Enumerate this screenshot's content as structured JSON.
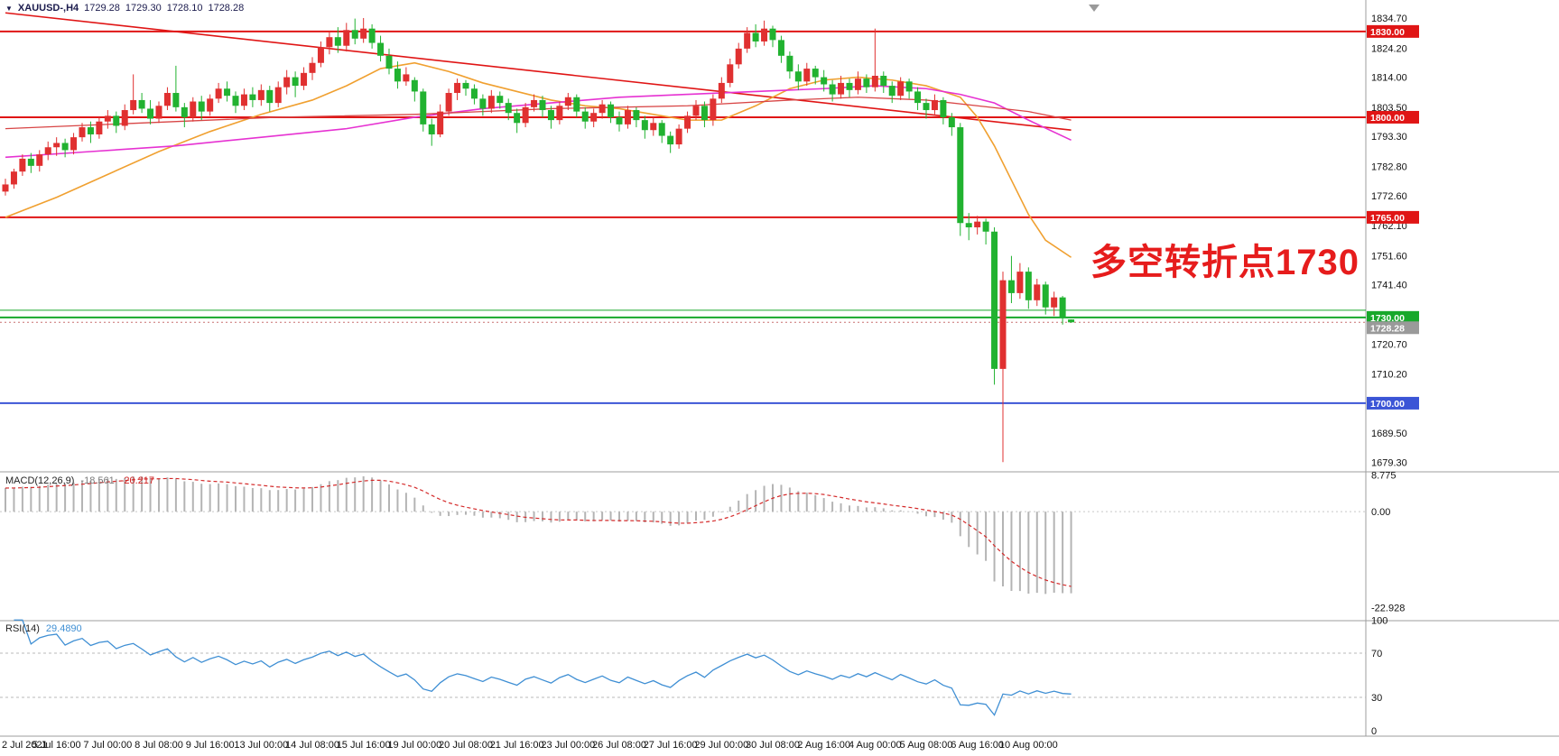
{
  "header": {
    "symbol": "XAUUSD-,H4",
    "open": "1729.28",
    "high": "1729.30",
    "low": "1728.10",
    "close": "1728.28"
  },
  "annotation": {
    "text": "多空转折点1730",
    "color": "#e61c1c"
  },
  "indicators": {
    "macd": {
      "label": "MACD(12,26,9)",
      "value_main": "-18.561",
      "value_signal": "-20.217",
      "ticks": [
        "8.775",
        "0.00",
        "-22.928"
      ],
      "histogram_color": "#b4b4b4",
      "signal_color": "#d42a2a",
      "params": {
        "fast": 12,
        "slow": 26,
        "signal": 9
      }
    },
    "rsi": {
      "label": "RSI(14)",
      "value": "29.4890",
      "ticks": [
        "100",
        "70",
        "30",
        "0"
      ],
      "levels": [
        70,
        30
      ],
      "line_color": "#3f8fd4",
      "params": {
        "period": 14
      }
    }
  },
  "chart_data": {
    "type": "candlestick",
    "symbol": "XAUUSD",
    "timeframe": "H4",
    "price_range": [
      1676,
      1841
    ],
    "bull_color": "#e03030",
    "bear_color": "#21b230",
    "y_ticks": [
      "1834.70",
      "1824.20",
      "1814.00",
      "1803.50",
      "1793.30",
      "1782.80",
      "1772.60",
      "1762.10",
      "1751.60",
      "1741.40",
      "1720.70",
      "1710.20",
      "1689.50",
      "1679.30"
    ],
    "x_labels": [
      {
        "index": 0,
        "label": "2 Jul 2021"
      },
      {
        "index": 6,
        "label": "5 Jul 16:00"
      },
      {
        "index": 12,
        "label": "7 Jul 00:00"
      },
      {
        "index": 18,
        "label": "8 Jul 08:00"
      },
      {
        "index": 24,
        "label": "9 Jul 16:00"
      },
      {
        "index": 30,
        "label": "13 Jul 00:00"
      },
      {
        "index": 36,
        "label": "14 Jul 08:00"
      },
      {
        "index": 42,
        "label": "15 Jul 16:00"
      },
      {
        "index": 48,
        "label": "19 Jul 00:00"
      },
      {
        "index": 54,
        "label": "20 Jul 08:00"
      },
      {
        "index": 60,
        "label": "21 Jul 16:00"
      },
      {
        "index": 66,
        "label": "23 Jul 00:00"
      },
      {
        "index": 72,
        "label": "26 Jul 08:00"
      },
      {
        "index": 78,
        "label": "27 Jul 16:00"
      },
      {
        "index": 84,
        "label": "29 Jul 00:00"
      },
      {
        "index": 90,
        "label": "30 Jul 08:00"
      },
      {
        "index": 96,
        "label": "2 Aug 16:00"
      },
      {
        "index": 102,
        "label": "4 Aug 00:00"
      },
      {
        "index": 108,
        "label": "5 Aug 08:00"
      },
      {
        "index": 114,
        "label": "6 Aug 16:00"
      },
      {
        "index": 120,
        "label": "10 Aug 00:00"
      }
    ],
    "hlines": [
      {
        "price": 1830.0,
        "color": "#e01515",
        "width": 2,
        "badge": "1830.00",
        "badge_bg": "#e01515"
      },
      {
        "price": 1800.0,
        "color": "#e01515",
        "width": 2,
        "badge": "1800.00",
        "badge_bg": "#e01515"
      },
      {
        "price": 1765.0,
        "color": "#e01515",
        "width": 2,
        "badge": "1765.00",
        "badge_bg": "#e01515"
      },
      {
        "price": 1732.5,
        "color": "#17a82b",
        "width": 1,
        "badge": null,
        "badge_bg": null
      },
      {
        "price": 1730.0,
        "color": "#17a82b",
        "width": 2,
        "badge": "1730.00",
        "badge_bg": "#17a82b"
      },
      {
        "price": 1700.0,
        "color": "#3b55d6",
        "width": 2,
        "badge": "1700.00",
        "badge_bg": "#3b55d6"
      }
    ],
    "current_price": {
      "value": 1728.28,
      "label": "1728.28",
      "line_color": "#c87070",
      "badge_bg": "#9a9a9a"
    },
    "trendline": {
      "from": [
        0,
        1836.5
      ],
      "to": [
        125,
        1795.5
      ],
      "color": "#e01515"
    },
    "moving_averages": [
      {
        "name": "ma-fast-orange",
        "color": "#f0a030",
        "width": 1.6,
        "points": [
          [
            0,
            1765
          ],
          [
            6,
            1772
          ],
          [
            12,
            1780
          ],
          [
            18,
            1788
          ],
          [
            24,
            1795
          ],
          [
            30,
            1801
          ],
          [
            36,
            1806
          ],
          [
            40,
            1811
          ],
          [
            44,
            1817
          ],
          [
            48,
            1819
          ],
          [
            52,
            1816
          ],
          [
            56,
            1812
          ],
          [
            60,
            1809
          ],
          [
            64,
            1806
          ],
          [
            68,
            1804
          ],
          [
            72,
            1803
          ],
          [
            76,
            1801
          ],
          [
            80,
            1799
          ],
          [
            84,
            1799
          ],
          [
            88,
            1804
          ],
          [
            92,
            1810
          ],
          [
            96,
            1813
          ],
          [
            100,
            1814
          ],
          [
            104,
            1813
          ],
          [
            108,
            1811
          ],
          [
            112,
            1807
          ],
          [
            114,
            1800
          ],
          [
            116,
            1790
          ],
          [
            118,
            1778
          ],
          [
            120,
            1766
          ],
          [
            122,
            1757
          ],
          [
            125,
            1751
          ]
        ]
      },
      {
        "name": "ma-slow-magenta",
        "color": "#e632d2",
        "width": 1.6,
        "points": [
          [
            0,
            1786
          ],
          [
            10,
            1788
          ],
          [
            20,
            1790
          ],
          [
            30,
            1793
          ],
          [
            40,
            1796
          ],
          [
            48,
            1800
          ],
          [
            56,
            1803
          ],
          [
            64,
            1805
          ],
          [
            72,
            1807
          ],
          [
            80,
            1808
          ],
          [
            88,
            1809
          ],
          [
            96,
            1810
          ],
          [
            102,
            1811
          ],
          [
            108,
            1810
          ],
          [
            112,
            1808
          ],
          [
            116,
            1805
          ],
          [
            120,
            1799
          ],
          [
            125,
            1792
          ]
        ]
      },
      {
        "name": "ma-slow-red",
        "color": "#d84545",
        "width": 1.3,
        "points": [
          [
            0,
            1796
          ],
          [
            16,
            1798
          ],
          [
            32,
            1800
          ],
          [
            48,
            1801
          ],
          [
            64,
            1803
          ],
          [
            80,
            1804
          ],
          [
            92,
            1806
          ],
          [
            100,
            1807
          ],
          [
            108,
            1806
          ],
          [
            114,
            1804
          ],
          [
            120,
            1802
          ],
          [
            125,
            1799
          ]
        ]
      }
    ],
    "candles": [
      [
        1774.0,
        1778.5,
        1772.6,
        1776.5
      ],
      [
        1776.5,
        1782.0,
        1775.0,
        1781.0
      ],
      [
        1781.0,
        1787.0,
        1779.5,
        1785.5
      ],
      [
        1785.5,
        1787.5,
        1780.5,
        1783.0
      ],
      [
        1783.0,
        1788.5,
        1781.0,
        1787.0
      ],
      [
        1787.0,
        1791.5,
        1785.0,
        1789.5
      ],
      [
        1789.5,
        1793.0,
        1786.5,
        1791.0
      ],
      [
        1791.0,
        1792.5,
        1786.0,
        1788.5
      ],
      [
        1788.5,
        1794.5,
        1787.0,
        1793.0
      ],
      [
        1793.0,
        1798.0,
        1791.5,
        1796.5
      ],
      [
        1796.5,
        1798.5,
        1791.0,
        1794.0
      ],
      [
        1794.0,
        1800.0,
        1792.5,
        1798.5
      ],
      [
        1798.5,
        1802.5,
        1796.0,
        1800.5
      ],
      [
        1800.5,
        1802.0,
        1794.5,
        1797.0
      ],
      [
        1797.0,
        1804.5,
        1795.5,
        1802.5
      ],
      [
        1802.5,
        1815.0,
        1801.0,
        1806.0
      ],
      [
        1806.0,
        1808.5,
        1801.5,
        1803.0
      ],
      [
        1803.0,
        1806.0,
        1797.5,
        1799.5
      ],
      [
        1799.5,
        1805.5,
        1798.0,
        1804.0
      ],
      [
        1804.0,
        1810.5,
        1802.5,
        1808.5
      ],
      [
        1808.5,
        1818.0,
        1802.0,
        1803.5
      ],
      [
        1803.5,
        1805.0,
        1796.5,
        1800.0
      ],
      [
        1800.0,
        1807.0,
        1798.5,
        1805.5
      ],
      [
        1805.5,
        1807.5,
        1799.0,
        1802.0
      ],
      [
        1802.0,
        1808.0,
        1800.5,
        1806.5
      ],
      [
        1806.5,
        1812.0,
        1805.0,
        1810.0
      ],
      [
        1810.0,
        1812.5,
        1805.5,
        1807.5
      ],
      [
        1807.5,
        1809.0,
        1801.5,
        1804.0
      ],
      [
        1804.0,
        1810.0,
        1802.5,
        1808.0
      ],
      [
        1808.0,
        1810.5,
        1803.5,
        1806.0
      ],
      [
        1806.0,
        1811.5,
        1804.0,
        1809.5
      ],
      [
        1809.5,
        1811.0,
        1802.0,
        1805.0
      ],
      [
        1805.0,
        1812.5,
        1803.5,
        1810.5
      ],
      [
        1810.5,
        1816.5,
        1808.0,
        1814.0
      ],
      [
        1814.0,
        1816.0,
        1807.0,
        1811.0
      ],
      [
        1811.0,
        1817.5,
        1809.5,
        1815.5
      ],
      [
        1815.5,
        1821.0,
        1813.0,
        1819.0
      ],
      [
        1819.0,
        1826.5,
        1817.5,
        1824.5
      ],
      [
        1824.5,
        1830.0,
        1822.0,
        1828.0
      ],
      [
        1828.0,
        1831.5,
        1822.5,
        1825.0
      ],
      [
        1825.0,
        1833.0,
        1823.0,
        1830.5
      ],
      [
        1830.5,
        1834.5,
        1825.5,
        1827.5
      ],
      [
        1827.5,
        1834.7,
        1826.0,
        1831.0
      ],
      [
        1831.0,
        1832.5,
        1824.0,
        1826.0
      ],
      [
        1826.0,
        1828.5,
        1819.5,
        1821.5
      ],
      [
        1821.5,
        1824.0,
        1815.0,
        1817.0
      ],
      [
        1817.0,
        1819.5,
        1810.0,
        1812.5
      ],
      [
        1812.5,
        1817.5,
        1811.0,
        1815.0
      ],
      [
        1813.0,
        1814.0,
        1805.5,
        1809.0
      ],
      [
        1809.0,
        1810.0,
        1795.0,
        1797.5
      ],
      [
        1797.5,
        1799.5,
        1790.0,
        1794.0
      ],
      [
        1794.0,
        1804.5,
        1793.0,
        1802.0
      ],
      [
        1802.0,
        1810.0,
        1800.5,
        1808.5
      ],
      [
        1808.5,
        1813.5,
        1806.0,
        1812.0
      ],
      [
        1812.0,
        1813.0,
        1807.5,
        1810.0
      ],
      [
        1810.0,
        1811.5,
        1804.5,
        1806.5
      ],
      [
        1806.5,
        1808.0,
        1800.5,
        1803.0
      ],
      [
        1803.0,
        1809.5,
        1801.5,
        1807.5
      ],
      [
        1807.5,
        1809.0,
        1803.0,
        1805.0
      ],
      [
        1805.0,
        1806.5,
        1799.0,
        1801.5
      ],
      [
        1801.5,
        1803.0,
        1794.5,
        1798.0
      ],
      [
        1798.0,
        1805.0,
        1796.5,
        1803.5
      ],
      [
        1803.5,
        1808.0,
        1802.0,
        1806.0
      ],
      [
        1806.0,
        1807.5,
        1800.0,
        1802.5
      ],
      [
        1802.5,
        1804.0,
        1796.0,
        1799.0
      ],
      [
        1799.0,
        1805.5,
        1797.5,
        1804.0
      ],
      [
        1804.0,
        1808.5,
        1802.5,
        1807.0
      ],
      [
        1807.0,
        1808.0,
        1800.0,
        1802.0
      ],
      [
        1802.0,
        1803.5,
        1796.0,
        1798.5
      ],
      [
        1798.5,
        1803.0,
        1796.5,
        1801.5
      ],
      [
        1801.5,
        1806.0,
        1799.5,
        1804.5
      ],
      [
        1804.5,
        1805.5,
        1798.0,
        1800.0
      ],
      [
        1800.0,
        1802.0,
        1795.0,
        1797.5
      ],
      [
        1797.5,
        1804.0,
        1796.0,
        1802.5
      ],
      [
        1802.5,
        1803.5,
        1796.5,
        1799.0
      ],
      [
        1799.0,
        1800.5,
        1792.5,
        1795.5
      ],
      [
        1795.5,
        1800.0,
        1793.5,
        1798.0
      ],
      [
        1798.0,
        1799.0,
        1791.0,
        1793.5
      ],
      [
        1793.5,
        1795.0,
        1787.5,
        1790.5
      ],
      [
        1790.5,
        1797.5,
        1789.0,
        1796.0
      ],
      [
        1796.0,
        1802.0,
        1794.5,
        1800.5
      ],
      [
        1800.5,
        1806.0,
        1799.0,
        1804.0
      ],
      [
        1804.0,
        1805.5,
        1796.5,
        1799.0
      ],
      [
        1799.0,
        1808.0,
        1797.0,
        1806.5
      ],
      [
        1806.5,
        1814.0,
        1805.0,
        1812.0
      ],
      [
        1812.0,
        1820.5,
        1810.5,
        1818.5
      ],
      [
        1818.5,
        1826.0,
        1817.0,
        1824.0
      ],
      [
        1824.0,
        1831.5,
        1822.5,
        1829.5
      ],
      [
        1829.5,
        1832.5,
        1824.5,
        1826.5
      ],
      [
        1826.5,
        1833.8,
        1825.0,
        1831.0
      ],
      [
        1831.0,
        1832.0,
        1824.5,
        1827.0
      ],
      [
        1827.0,
        1828.5,
        1819.0,
        1821.5
      ],
      [
        1821.5,
        1823.0,
        1813.5,
        1816.0
      ],
      [
        1816.0,
        1818.5,
        1809.5,
        1812.5
      ],
      [
        1812.5,
        1819.0,
        1811.0,
        1817.0
      ],
      [
        1817.0,
        1818.0,
        1811.5,
        1814.0
      ],
      [
        1814.0,
        1816.5,
        1809.0,
        1811.5
      ],
      [
        1811.5,
        1813.0,
        1805.5,
        1808.0
      ],
      [
        1808.0,
        1814.5,
        1806.5,
        1812.0
      ],
      [
        1812.0,
        1813.5,
        1807.0,
        1809.5
      ],
      [
        1809.5,
        1816.0,
        1808.0,
        1813.5
      ],
      [
        1813.5,
        1815.0,
        1808.5,
        1810.5
      ],
      [
        1810.5,
        1831.0,
        1809.0,
        1814.5
      ],
      [
        1814.5,
        1816.0,
        1808.5,
        1811.0
      ],
      [
        1811.0,
        1812.5,
        1805.0,
        1807.5
      ],
      [
        1807.5,
        1814.0,
        1806.0,
        1812.5
      ],
      [
        1812.5,
        1813.5,
        1806.5,
        1809.0
      ],
      [
        1809.0,
        1810.5,
        1802.5,
        1805.0
      ],
      [
        1805.0,
        1806.5,
        1799.5,
        1802.5
      ],
      [
        1802.5,
        1808.0,
        1801.0,
        1806.0
      ],
      [
        1806.0,
        1807.0,
        1797.5,
        1800.0
      ],
      [
        1800.0,
        1801.5,
        1793.5,
        1796.5
      ],
      [
        1796.5,
        1798.0,
        1758.5,
        1763.0
      ],
      [
        1763.0,
        1766.5,
        1757.0,
        1761.5
      ],
      [
        1761.5,
        1765.5,
        1759.0,
        1763.5
      ],
      [
        1763.5,
        1764.5,
        1755.5,
        1760.0
      ],
      [
        1760.0,
        1761.5,
        1706.5,
        1712.0
      ],
      [
        1712.0,
        1746.0,
        1679.4,
        1743.0
      ],
      [
        1743.0,
        1751.5,
        1735.0,
        1738.5
      ],
      [
        1738.5,
        1749.0,
        1736.5,
        1746.0
      ],
      [
        1746.0,
        1747.5,
        1733.0,
        1736.0
      ],
      [
        1736.0,
        1743.5,
        1734.0,
        1741.5
      ],
      [
        1741.5,
        1742.5,
        1731.0,
        1733.5
      ],
      [
        1733.5,
        1739.0,
        1730.5,
        1737.0
      ],
      [
        1737.0,
        1737.5,
        1727.5,
        1730.0
      ],
      [
        1729.28,
        1729.3,
        1728.1,
        1728.28
      ]
    ]
  }
}
